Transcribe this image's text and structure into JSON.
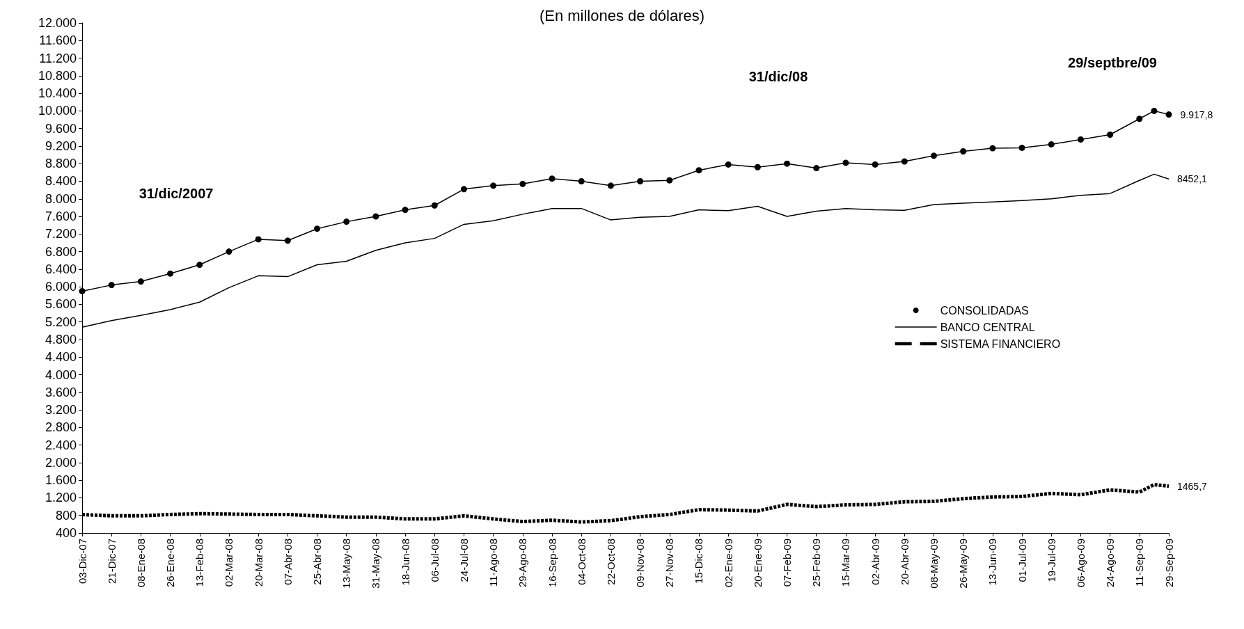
{
  "chart_data": {
    "type": "line",
    "title": "(En millones de dólares)",
    "x": [
      "2007-12-03",
      "2007-12-21",
      "2008-01-08",
      "2008-01-26",
      "2008-02-13",
      "2008-03-02",
      "2008-03-20",
      "2008-04-07",
      "2008-04-25",
      "2008-05-13",
      "2008-05-31",
      "2008-06-18",
      "2008-07-06",
      "2008-07-24",
      "2008-08-11",
      "2008-08-29",
      "2008-09-16",
      "2008-10-04",
      "2008-10-22",
      "2008-11-09",
      "2008-11-27",
      "2008-12-15",
      "2009-01-02",
      "2009-01-20",
      "2009-02-07",
      "2009-02-25",
      "2009-03-15",
      "2009-04-02",
      "2009-04-20",
      "2009-05-08",
      "2009-05-26",
      "2009-06-13",
      "2009-07-01",
      "2009-07-19",
      "2009-08-06",
      "2009-08-24",
      "2009-09-11",
      "2009-09-20",
      "2009-09-29"
    ],
    "series": [
      {
        "name": "CONSOLIDADAS",
        "color": "#000000",
        "marker": "circle",
        "line_style": "solid",
        "values": [
          5900,
          6040,
          6120,
          6300,
          6500,
          6800,
          7080,
          7050,
          7320,
          7480,
          7600,
          7750,
          7850,
          8220,
          8300,
          8340,
          8460,
          8400,
          8300,
          8400,
          8420,
          8650,
          8780,
          8720,
          8800,
          8700,
          8820,
          8780,
          8850,
          8980,
          9080,
          9150,
          9160,
          9240,
          9350,
          9460,
          9820,
          10000,
          9917.8
        ],
        "value_labels": [
          null,
          null,
          null,
          null,
          null,
          null,
          null,
          null,
          null,
          null,
          null,
          null,
          null,
          null,
          null,
          null,
          null,
          null,
          null,
          null,
          null,
          null,
          null,
          null,
          null,
          null,
          null,
          null,
          null,
          null,
          null,
          null,
          null,
          null,
          null,
          null,
          null,
          null,
          "9.917,8"
        ]
      },
      {
        "name": "BANCO CENTRAL",
        "color": "#000000",
        "marker": "none",
        "line_style": "solid",
        "values": [
          5080,
          5230,
          5350,
          5480,
          5650,
          5980,
          6250,
          6230,
          6500,
          6580,
          6830,
          7000,
          7100,
          7420,
          7500,
          7650,
          7780,
          7780,
          7520,
          7580,
          7600,
          7750,
          7730,
          7830,
          7600,
          7720,
          7780,
          7750,
          7740,
          7870,
          7900,
          7930,
          7960,
          8000,
          8080,
          8120,
          8420,
          8560,
          8452.1
        ],
        "value_labels": [
          null,
          null,
          null,
          null,
          null,
          null,
          null,
          null,
          null,
          null,
          null,
          null,
          null,
          null,
          null,
          null,
          null,
          null,
          null,
          null,
          null,
          null,
          null,
          null,
          null,
          null,
          null,
          null,
          null,
          null,
          null,
          null,
          null,
          null,
          null,
          null,
          null,
          null,
          "8452,1"
        ]
      },
      {
        "name": "SISTEMA FINANCIERO",
        "color": "#000000",
        "marker": "none",
        "line_style": "dashed",
        "values": [
          820,
          790,
          790,
          820,
          840,
          830,
          820,
          820,
          790,
          760,
          760,
          720,
          720,
          790,
          720,
          660,
          690,
          650,
          680,
          770,
          820,
          930,
          920,
          900,
          1050,
          1000,
          1040,
          1050,
          1110,
          1120,
          1180,
          1220,
          1230,
          1300,
          1270,
          1380,
          1330,
          1500,
          1465.7
        ],
        "value_labels": [
          null,
          null,
          null,
          null,
          null,
          null,
          null,
          null,
          null,
          null,
          null,
          null,
          null,
          null,
          null,
          null,
          null,
          null,
          null,
          null,
          null,
          null,
          null,
          null,
          null,
          null,
          null,
          null,
          null,
          null,
          null,
          null,
          null,
          null,
          null,
          null,
          null,
          null,
          "1465,7"
        ]
      }
    ],
    "xlim": [
      "2007-12-03",
      "2009-09-29"
    ],
    "xticks": [
      {
        "value": "2007-12-03",
        "label": "03-Dic-07"
      },
      {
        "value": "2007-12-21",
        "label": "21-Dic-07"
      },
      {
        "value": "2008-01-08",
        "label": "08-Ene-08"
      },
      {
        "value": "2008-01-26",
        "label": "26-Ene-08"
      },
      {
        "value": "2008-02-13",
        "label": "13-Feb-08"
      },
      {
        "value": "2008-03-02",
        "label": "02-Mar-08"
      },
      {
        "value": "2008-03-20",
        "label": "20-Mar-08"
      },
      {
        "value": "2008-04-07",
        "label": "07-Abr-08"
      },
      {
        "value": "2008-04-25",
        "label": "25-Abr-08"
      },
      {
        "value": "2008-05-13",
        "label": "13-May-08"
      },
      {
        "value": "2008-05-31",
        "label": "31-May-08"
      },
      {
        "value": "2008-06-18",
        "label": "18-Jun-08"
      },
      {
        "value": "2008-07-06",
        "label": "06-Jul-08"
      },
      {
        "value": "2008-07-24",
        "label": "24-Jul-08"
      },
      {
        "value": "2008-08-11",
        "label": "11-Ago-08"
      },
      {
        "value": "2008-08-29",
        "label": "29-Ago-08"
      },
      {
        "value": "2008-09-16",
        "label": "16-Sep-08"
      },
      {
        "value": "2008-10-04",
        "label": "04-Oct-08"
      },
      {
        "value": "2008-10-22",
        "label": "22-Oct-08"
      },
      {
        "value": "2008-11-09",
        "label": "09-Nov-08"
      },
      {
        "value": "2008-11-27",
        "label": "27-Nov-08"
      },
      {
        "value": "2008-12-15",
        "label": "15-Dic-08"
      },
      {
        "value": "2009-01-02",
        "label": "02-Ene-09"
      },
      {
        "value": "2009-01-20",
        "label": "20-Ene-09"
      },
      {
        "value": "2009-02-07",
        "label": "07-Feb-09"
      },
      {
        "value": "2009-02-25",
        "label": "25-Feb-09"
      },
      {
        "value": "2009-03-15",
        "label": "15-Mar-09"
      },
      {
        "value": "2009-04-02",
        "label": "02-Abr-09"
      },
      {
        "value": "2009-04-20",
        "label": "20-Abr-09"
      },
      {
        "value": "2009-05-08",
        "label": "08-May-09"
      },
      {
        "value": "2009-05-26",
        "label": "26-May-09"
      },
      {
        "value": "2009-06-13",
        "label": "13-Jun-09"
      },
      {
        "value": "2009-07-01",
        "label": "01-Jul-09"
      },
      {
        "value": "2009-07-19",
        "label": "19-Jul-09"
      },
      {
        "value": "2009-08-06",
        "label": "06-Ago-09"
      },
      {
        "value": "2009-08-24",
        "label": "24-Ago-09"
      },
      {
        "value": "2009-09-11",
        "label": "11-Sep-09"
      },
      {
        "value": "2009-09-29",
        "label": "29-Sep-09"
      }
    ],
    "ylim": [
      400,
      12000
    ],
    "yticks": [
      400,
      800,
      {
        "value": 1200,
        "label": "1.200"
      },
      {
        "value": 1600,
        "label": "1.600"
      },
      {
        "value": 2000,
        "label": "2.000"
      },
      {
        "value": 2400,
        "label": "2.400"
      },
      {
        "value": 2800,
        "label": "2.800"
      },
      {
        "value": 3200,
        "label": "3.200"
      },
      {
        "value": 3600,
        "label": "3.600"
      },
      {
        "value": 4000,
        "label": "4.000"
      },
      {
        "value": 4400,
        "label": "4.400"
      },
      {
        "value": 4800,
        "label": "4.800"
      },
      {
        "value": 5200,
        "label": "5.200"
      },
      {
        "value": 5600,
        "label": "5.600"
      },
      {
        "value": 6000,
        "label": "6.000"
      },
      {
        "value": 6400,
        "label": "6.400"
      },
      {
        "value": 6800,
        "label": "6.800"
      },
      {
        "value": 7200,
        "label": "7.200"
      },
      {
        "value": 7600,
        "label": "7.600"
      },
      {
        "value": 8000,
        "label": "8.000"
      },
      {
        "value": 8400,
        "label": "8.400"
      },
      {
        "value": 8800,
        "label": "8.800"
      },
      {
        "value": 9200,
        "label": "9.200"
      },
      {
        "value": 9600,
        "label": "9.600"
      },
      {
        "value": 10000,
        "label": "10.000"
      },
      {
        "value": 10400,
        "label": "10.400"
      },
      {
        "value": 10800,
        "label": "10.800"
      },
      {
        "value": 11200,
        "label": "11.200"
      },
      {
        "value": 11600,
        "label": "11.600"
      },
      {
        "value": 12000,
        "label": "12.000"
      }
    ],
    "annotations": [
      "31/dic/2007",
      "31/dic/08",
      "29/septbre/09"
    ],
    "grid": false,
    "legend": "right"
  }
}
